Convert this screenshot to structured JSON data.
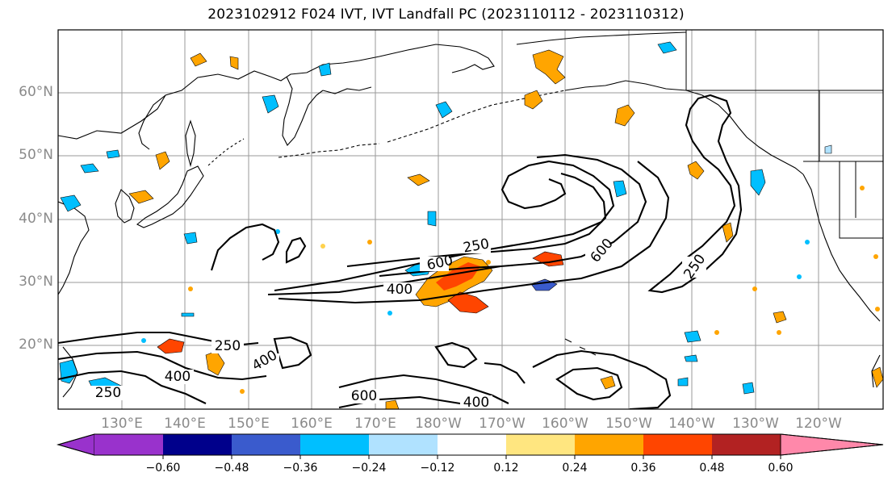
{
  "title": "2023102912 F024 IVT, IVT Landfall PC (2023110112 - 2023110312)",
  "lat_labels": [
    "60°N",
    "50°N",
    "40°N",
    "30°N",
    "20°N"
  ],
  "lon_labels": [
    "130°E",
    "140°E",
    "150°E",
    "160°E",
    "170°E",
    "180°W",
    "170°W",
    "160°W",
    "150°W",
    "140°W",
    "130°W",
    "120°W"
  ],
  "contour_labels": [
    "250",
    "400",
    "600"
  ],
  "colorbar": {
    "colors": [
      "#9932cc",
      "#00008b",
      "#3a5bcd",
      "#00bfff",
      "#b0e2ff",
      "#ffffff",
      "#ffe680",
      "#ffa500",
      "#ff4500",
      "#b22222",
      "#ff88aa"
    ],
    "tick_labels": [
      "−0.60",
      "−0.48",
      "−0.36",
      "−0.24",
      "−0.12",
      "0.12",
      "0.24",
      "0.36",
      "0.48",
      "0.60"
    ]
  }
}
